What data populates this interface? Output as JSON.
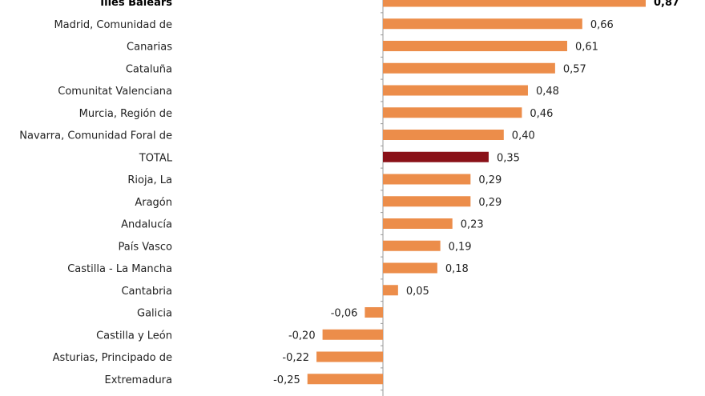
{
  "chart_data": {
    "type": "bar",
    "orientation": "horizontal",
    "title": "",
    "xlabel": "",
    "ylabel": "",
    "decimal_separator": ",",
    "categories": [
      "Illes Balears",
      "Madrid, Comunidad de",
      "Canarias",
      "Cataluña",
      "Comunitat Valenciana",
      "Murcia, Región de",
      "Navarra, Comunidad Foral de",
      "TOTAL",
      "Rioja, La",
      "Aragón",
      "Andalucía",
      "País Vasco",
      "Castilla - La Mancha",
      "Cantabria",
      "Galicia",
      "Castilla y León",
      "Asturias, Principado de",
      "Extremadura"
    ],
    "values": [
      0.87,
      0.66,
      0.61,
      0.57,
      0.48,
      0.46,
      0.4,
      0.35,
      0.29,
      0.29,
      0.23,
      0.19,
      0.18,
      0.05,
      -0.06,
      -0.2,
      -0.22,
      -0.25
    ],
    "highlight_bold": [
      "Illes Balears"
    ],
    "highlight_total": "TOTAL",
    "colors": {
      "bar": "#EC8D4A",
      "total": "#8A1118",
      "axis": "#999999"
    }
  }
}
